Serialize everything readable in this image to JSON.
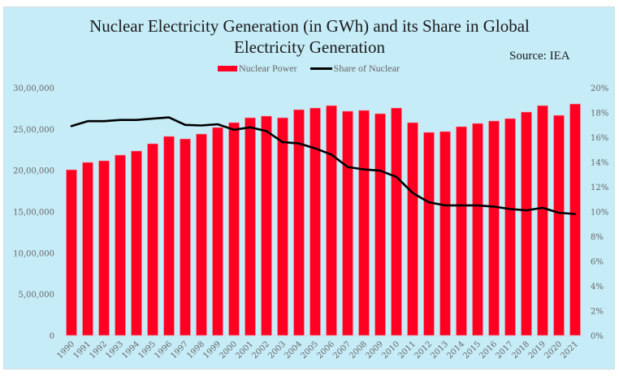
{
  "chart_data": {
    "type": "bar+line",
    "title": "Nuclear Electricity Generation (in GWh) and its Share in Global Electricity Generation",
    "title_lines": [
      "Nuclear Electricity Generation (in GWh) and its Share in Global",
      "Electricity Generation"
    ],
    "annotation": "Source: IEA",
    "legend": {
      "position": "top-center",
      "entries": [
        "Nuclear Power",
        "Share of Nuclear"
      ]
    },
    "categories": [
      "1990",
      "1991",
      "1992",
      "1993",
      "1994",
      "1995",
      "1996",
      "1997",
      "1998",
      "1999",
      "2000",
      "2001",
      "2002",
      "2003",
      "2004",
      "2005",
      "2006",
      "2007",
      "2008",
      "2009",
      "2010",
      "2011",
      "2012",
      "2013",
      "2014",
      "2015",
      "2016",
      "2017",
      "2018",
      "2019",
      "2020",
      "2021"
    ],
    "series": [
      {
        "name": "Nuclear Power",
        "type": "bar",
        "axis": "left",
        "color": "#ff0022",
        "values": [
          2006000,
          2095000,
          2115000,
          2184000,
          2233000,
          2321000,
          2410000,
          2380000,
          2439000,
          2518000,
          2577000,
          2636000,
          2656000,
          2636000,
          2734000,
          2754000,
          2783000,
          2715000,
          2725000,
          2685000,
          2754000,
          2577000,
          2459000,
          2469000,
          2528000,
          2567000,
          2597000,
          2626000,
          2705000,
          2783000,
          2665000,
          2803000
        ]
      },
      {
        "name": "Share of Nuclear",
        "type": "line",
        "axis": "right",
        "color": "#000000",
        "values": [
          16.9,
          17.3,
          17.3,
          17.4,
          17.4,
          17.5,
          17.6,
          17.0,
          16.95,
          17.05,
          16.6,
          16.8,
          16.5,
          15.6,
          15.5,
          15.1,
          14.6,
          13.6,
          13.4,
          13.3,
          12.8,
          11.5,
          10.75,
          10.5,
          10.5,
          10.5,
          10.4,
          10.2,
          10.1,
          10.3,
          9.9,
          9.8
        ]
      }
    ],
    "y_left": {
      "range": [
        0,
        3000000
      ],
      "ticks": [
        0,
        500000,
        1000000,
        1500000,
        2000000,
        2500000,
        3000000
      ],
      "tick_labels": [
        "0",
        "5,00,000",
        "10,00,000",
        "15,00,000",
        "20,00,000",
        "25,00,000",
        "30,00,000"
      ]
    },
    "y_right": {
      "range": [
        0,
        20
      ],
      "ticks": [
        0,
        2,
        4,
        6,
        8,
        10,
        12,
        14,
        16,
        18,
        20
      ],
      "tick_labels": [
        "0%",
        "2%",
        "4%",
        "6%",
        "8%",
        "10%",
        "12%",
        "14%",
        "16%",
        "18%",
        "20%"
      ]
    },
    "xlabel": "",
    "ylabel": "",
    "grid": false,
    "background": "#c6ecf7"
  }
}
